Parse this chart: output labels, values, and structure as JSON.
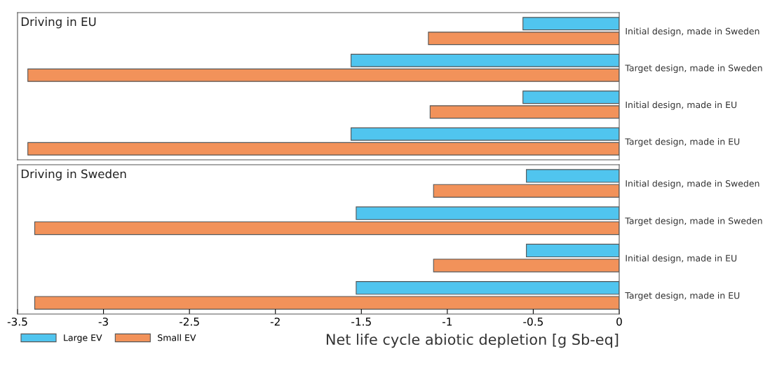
{
  "chart_data": [
    {
      "type": "bar",
      "orientation": "horizontal",
      "title": "Driving in EU",
      "categories": [
        "Initial design, made in Sweden",
        "Target design, made in Sweden",
        "Initial design, made in EU",
        "Target design, made in EU"
      ],
      "series": [
        {
          "color": "#50c5ef",
          "values": [
            -0.56,
            -1.56,
            -0.56,
            -1.56
          ]
        },
        {
          "color": "#f2925a",
          "values": [
            -1.11,
            -3.44,
            -1.1,
            -3.44
          ]
        }
      ],
      "xlim": [
        -3.5,
        0
      ],
      "xticks": [
        -3.5,
        -3,
        -2.5,
        -2,
        -1.5,
        -1,
        -0.5,
        0
      ],
      "tick_labels": "y",
      "grid": false
    },
    {
      "type": "bar",
      "orientation": "horizontal",
      "title": "Driving in Sweden",
      "categories": [
        "Initial design, made in Sweden",
        "Target design, made in Sweden",
        "Initial design, made in EU",
        "Target design, made in EU"
      ],
      "series": [
        {
          "name": "Large EV",
          "color": "#50c5ef",
          "values": [
            -0.54,
            -1.53,
            -0.54,
            -1.53
          ]
        },
        {
          "name": "Small EV",
          "color": "#f2925a",
          "values": [
            -1.08,
            -3.4,
            -1.08,
            -3.4
          ]
        }
      ],
      "xlim": [
        -3.5,
        0
      ],
      "xticks": [
        -3.5,
        -3,
        -2.5,
        -2,
        -1.5,
        -1,
        -0.5,
        0
      ],
      "xlabel": "Net life cycle abiotic depletion [g Sb-eq]",
      "grid": false,
      "legend": "bottom left"
    }
  ]
}
